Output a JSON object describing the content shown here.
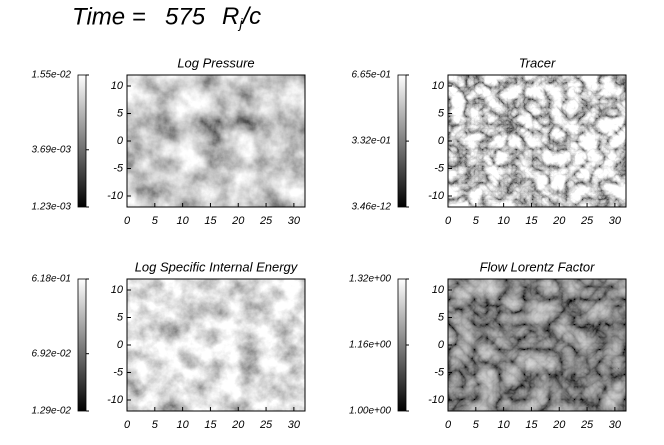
{
  "header": {
    "time_label": "Time =",
    "time_value": 575,
    "unit_base": "R",
    "unit_sub": "j",
    "unit_rest": "/c"
  },
  "chart_data": [
    {
      "type": "image",
      "title": "Log Pressure",
      "xlim": [
        0,
        32
      ],
      "ylim": [
        -12,
        12
      ],
      "xticks": [
        0,
        5,
        10,
        15,
        20,
        25,
        30
      ],
      "yticks": [
        -10,
        -5,
        0,
        5,
        10
      ],
      "colorbar_log": true,
      "colorbar_ticks": [
        {
          "value": 0.00123,
          "label": "1.23e-03"
        },
        {
          "value": 0.00369,
          "label": "3.69e-03"
        },
        {
          "value": 0.0155,
          "label": "1.55e-02"
        }
      ]
    },
    {
      "type": "image",
      "title": "Tracer",
      "xlim": [
        0,
        32
      ],
      "ylim": [
        -12,
        12
      ],
      "xticks": [
        0,
        5,
        10,
        15,
        20,
        25,
        30
      ],
      "yticks": [
        -10,
        -5,
        0,
        5,
        10
      ],
      "colorbar_log": false,
      "colorbar_ticks": [
        {
          "value": 3.46e-12,
          "label": "3.46e-12"
        },
        {
          "value": 0.332,
          "label": "3.32e-01"
        },
        {
          "value": 0.665,
          "label": "6.65e-01"
        }
      ]
    },
    {
      "type": "image",
      "title": "Log Specific Internal Energy",
      "xlim": [
        0,
        32
      ],
      "ylim": [
        -12,
        12
      ],
      "xticks": [
        0,
        5,
        10,
        15,
        20,
        25,
        30
      ],
      "yticks": [
        -10,
        -5,
        0,
        5,
        10
      ],
      "colorbar_log": true,
      "colorbar_ticks": [
        {
          "value": 0.0129,
          "label": "1.29e-02"
        },
        {
          "value": 0.0692,
          "label": "6.92e-02"
        },
        {
          "value": 0.618,
          "label": "6.18e-01"
        }
      ]
    },
    {
      "type": "image",
      "title": "Flow Lorentz Factor",
      "xlim": [
        0,
        32
      ],
      "ylim": [
        -12,
        12
      ],
      "xticks": [
        0,
        5,
        10,
        15,
        20,
        25,
        30
      ],
      "yticks": [
        -10,
        -5,
        0,
        5,
        10
      ],
      "colorbar_log": false,
      "colorbar_ticks": [
        {
          "value": 1.0,
          "label": "1.00e+00"
        },
        {
          "value": 1.16,
          "label": "1.16e+00"
        },
        {
          "value": 1.32,
          "label": "1.32e+00"
        }
      ]
    }
  ]
}
